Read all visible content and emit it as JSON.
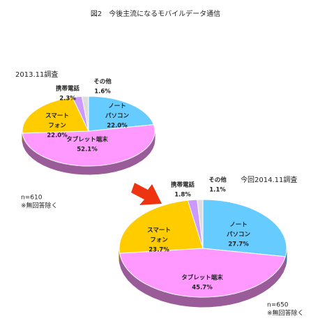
{
  "title": "図2　今後主流になるモバイルデータ通信",
  "chart_data": [
    {
      "type": "pie",
      "title": "2013.11調査",
      "categories": [
        [
          "ノート",
          "パソコン"
        ],
        [
          "タブレット端末"
        ],
        [
          "スマート",
          "フォン"
        ],
        [
          "携帯電話"
        ],
        [
          "その他"
        ]
      ],
      "values": [
        22.0,
        52.1,
        22.0,
        2.3,
        1.6
      ],
      "value_labels": [
        "22.0%",
        "52.1%",
        "22.0%",
        "2.3%",
        "1.6%"
      ],
      "colors": [
        "#66ccff",
        "#ff99ff",
        "#ffcc00",
        "#cc99ff",
        "#dddddd"
      ],
      "notes": [
        "n=610",
        "※無回答除く"
      ]
    },
    {
      "type": "pie",
      "title": "今回2014.11調査",
      "categories": [
        [
          "ノート",
          "パソコン"
        ],
        [
          "タブレット端末"
        ],
        [
          "スマート",
          "フォン"
        ],
        [
          "携帯電話"
        ],
        [
          "その他"
        ]
      ],
      "values": [
        27.7,
        45.7,
        23.7,
        1.8,
        1.1
      ],
      "value_labels": [
        "27.7%",
        "45.7%",
        "23.7%",
        "1.8%",
        "1.1%"
      ],
      "colors": [
        "#66ccff",
        "#ff99ff",
        "#ffcc00",
        "#cc99ff",
        "#dddddd"
      ],
      "notes": [
        "n=650",
        "※無回答除く"
      ]
    }
  ]
}
